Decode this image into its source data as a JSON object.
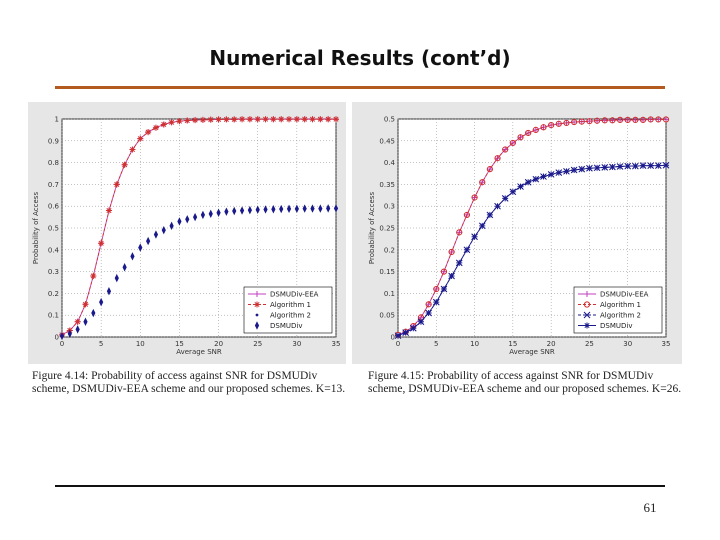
{
  "slide": {
    "title": "Numerical Results (cont’d)",
    "page_number": "61"
  },
  "colors": {
    "accent_rule": "#b35a1f",
    "red": "#d03030",
    "blue": "#1a1a8c",
    "purple": "#c040c0"
  },
  "chart_data": [
    {
      "type": "line",
      "x": [
        0,
        1,
        2,
        3,
        4,
        5,
        6,
        7,
        8,
        9,
        10,
        11,
        12,
        13,
        14,
        15,
        16,
        17,
        18,
        19,
        20,
        21,
        22,
        23,
        24,
        25,
        26,
        27,
        28,
        29,
        30,
        31,
        32,
        33,
        34,
        35
      ],
      "xticks": [
        "0",
        "5",
        "10",
        "15",
        "20",
        "25",
        "30",
        "35"
      ],
      "xtick_values": [
        0,
        5,
        10,
        15,
        20,
        25,
        30,
        35
      ],
      "yticks": [
        "0",
        "0.1",
        "0.2",
        "0.3",
        "0.4",
        "0.5",
        "0.6",
        "0.7",
        "0.8",
        "0.9",
        "1"
      ],
      "ytick_values": [
        0,
        0.1,
        0.2,
        0.3,
        0.4,
        0.5,
        0.6,
        0.7,
        0.8,
        0.9,
        1
      ],
      "xlim": [
        0,
        35
      ],
      "ylim": [
        0,
        1
      ],
      "xlabel": "Average SNR",
      "ylabel": "Probability of Access",
      "grid": true,
      "legend_position": "bottom-right",
      "series": [
        {
          "name": "DSMUDiv-EEA",
          "marker": "plus",
          "color": "#c040c0",
          "line": "solid",
          "values": [
            0.01,
            0.03,
            0.07,
            0.15,
            0.28,
            0.43,
            0.58,
            0.7,
            0.79,
            0.86,
            0.91,
            0.94,
            0.96,
            0.975,
            0.985,
            0.99,
            0.993,
            0.995,
            0.996,
            0.997,
            0.998,
            0.998,
            0.998,
            0.999,
            0.999,
            0.999,
            0.999,
            0.999,
            0.999,
            0.999,
            0.999,
            0.999,
            0.999,
            0.999,
            0.999,
            0.999
          ]
        },
        {
          "name": "Algorithm 1",
          "marker": "star",
          "color": "#d03030",
          "line": "dashed",
          "values": [
            0.01,
            0.03,
            0.07,
            0.15,
            0.28,
            0.43,
            0.58,
            0.7,
            0.79,
            0.86,
            0.91,
            0.94,
            0.96,
            0.975,
            0.985,
            0.99,
            0.993,
            0.995,
            0.996,
            0.997,
            0.998,
            0.998,
            0.998,
            0.999,
            0.999,
            0.999,
            0.999,
            0.999,
            0.999,
            0.999,
            0.999,
            0.999,
            0.999,
            0.999,
            0.999,
            0.999
          ]
        },
        {
          "name": "Algorithm 2",
          "marker": "dot",
          "color": "#1a1a8c",
          "line": "dots",
          "values": [
            0.005,
            0.015,
            0.035,
            0.07,
            0.11,
            0.16,
            0.21,
            0.27,
            0.32,
            0.37,
            0.41,
            0.44,
            0.47,
            0.49,
            0.51,
            0.53,
            0.54,
            0.55,
            0.56,
            0.565,
            0.57,
            0.575,
            0.578,
            0.58,
            0.582,
            0.584,
            0.585,
            0.586,
            0.587,
            0.588,
            0.588,
            0.589,
            0.589,
            0.589,
            0.59,
            0.59
          ]
        },
        {
          "name": "DSMUDiv",
          "marker": "diamond",
          "color": "#1a1a8c",
          "line": "dots",
          "values": [
            0.005,
            0.015,
            0.035,
            0.07,
            0.11,
            0.16,
            0.21,
            0.27,
            0.32,
            0.37,
            0.41,
            0.44,
            0.47,
            0.49,
            0.51,
            0.53,
            0.54,
            0.55,
            0.56,
            0.565,
            0.57,
            0.575,
            0.578,
            0.58,
            0.582,
            0.584,
            0.585,
            0.586,
            0.587,
            0.588,
            0.588,
            0.589,
            0.589,
            0.589,
            0.59,
            0.59
          ]
        }
      ],
      "caption": "Figure 4.14: Probability of access against SNR for DSMUDiv scheme, DSMUDiv-EEA scheme and our proposed schemes. K=13."
    },
    {
      "type": "line",
      "x": [
        0,
        1,
        2,
        3,
        4,
        5,
        6,
        7,
        8,
        9,
        10,
        11,
        12,
        13,
        14,
        15,
        16,
        17,
        18,
        19,
        20,
        21,
        22,
        23,
        24,
        25,
        26,
        27,
        28,
        29,
        30,
        31,
        32,
        33,
        34,
        35
      ],
      "xticks": [
        "0",
        "5",
        "10",
        "15",
        "20",
        "25",
        "30",
        "35"
      ],
      "xtick_values": [
        0,
        5,
        10,
        15,
        20,
        25,
        30,
        35
      ],
      "yticks": [
        "0",
        "0.05",
        "0.1",
        "0.15",
        "0.2",
        "0.25",
        "0.3",
        "0.35",
        "0.4",
        "0.45",
        "0.5"
      ],
      "ytick_values": [
        0,
        0.05,
        0.1,
        0.15,
        0.2,
        0.25,
        0.3,
        0.35,
        0.4,
        0.45,
        0.5
      ],
      "xlim": [
        0,
        35
      ],
      "ylim": [
        0,
        0.5
      ],
      "xlabel": "Average SNR",
      "ylabel": "Probability of Access",
      "grid": true,
      "legend_position": "bottom-right",
      "series": [
        {
          "name": "DSMUDiv-EEA",
          "marker": "plus",
          "color": "#c040c0",
          "line": "solid",
          "values": [
            0.005,
            0.012,
            0.025,
            0.045,
            0.075,
            0.11,
            0.15,
            0.195,
            0.24,
            0.28,
            0.32,
            0.355,
            0.385,
            0.41,
            0.43,
            0.445,
            0.458,
            0.468,
            0.475,
            0.481,
            0.486,
            0.489,
            0.491,
            0.493,
            0.494,
            0.495,
            0.496,
            0.497,
            0.497,
            0.498,
            0.498,
            0.498,
            0.498,
            0.499,
            0.499,
            0.499
          ]
        },
        {
          "name": "Algorithm 1",
          "marker": "circle",
          "color": "#d03030",
          "line": "dashed",
          "values": [
            0.005,
            0.012,
            0.025,
            0.045,
            0.075,
            0.11,
            0.15,
            0.195,
            0.24,
            0.28,
            0.32,
            0.355,
            0.385,
            0.41,
            0.43,
            0.445,
            0.458,
            0.468,
            0.475,
            0.481,
            0.486,
            0.489,
            0.491,
            0.493,
            0.494,
            0.495,
            0.496,
            0.497,
            0.497,
            0.498,
            0.498,
            0.498,
            0.498,
            0.499,
            0.499,
            0.499
          ]
        },
        {
          "name": "Algorithm 2",
          "marker": "x",
          "color": "#1a1a8c",
          "line": "dashed",
          "values": [
            0.003,
            0.01,
            0.02,
            0.035,
            0.055,
            0.08,
            0.11,
            0.14,
            0.17,
            0.2,
            0.23,
            0.255,
            0.28,
            0.3,
            0.318,
            0.333,
            0.345,
            0.355,
            0.362,
            0.368,
            0.373,
            0.377,
            0.38,
            0.383,
            0.385,
            0.387,
            0.388,
            0.389,
            0.39,
            0.391,
            0.392,
            0.392,
            0.393,
            0.393,
            0.393,
            0.394
          ]
        },
        {
          "name": "DSMUDiv",
          "marker": "star",
          "color": "#1a1a8c",
          "line": "solid",
          "values": [
            0.003,
            0.01,
            0.02,
            0.035,
            0.055,
            0.08,
            0.11,
            0.14,
            0.17,
            0.2,
            0.23,
            0.255,
            0.28,
            0.3,
            0.318,
            0.333,
            0.345,
            0.355,
            0.362,
            0.368,
            0.373,
            0.377,
            0.38,
            0.383,
            0.385,
            0.387,
            0.388,
            0.389,
            0.39,
            0.391,
            0.392,
            0.392,
            0.393,
            0.393,
            0.393,
            0.394
          ]
        }
      ],
      "caption": "Figure 4.15: Probability of access against SNR for DSMUDiv scheme, DSMUDiv-EEA scheme and our proposed schemes. K=26."
    }
  ]
}
